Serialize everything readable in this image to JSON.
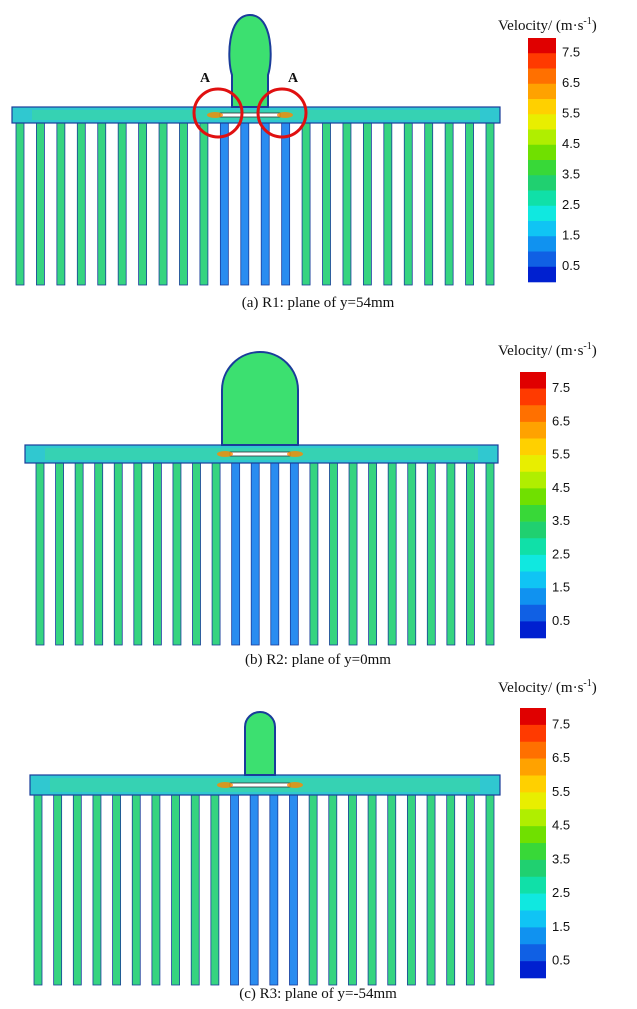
{
  "panels": [
    {
      "legend_title": "Velocity/ (m·s",
      "legend_title_sup": "-1",
      "legend_title_end": ")",
      "legend_ticks": [
        7.5,
        6.5,
        5.5,
        4.5,
        3.5,
        2.5,
        1.5,
        0.5
      ],
      "annotations": [
        "A",
        "A"
      ],
      "caption": "(a) R1: plane of y=54mm"
    },
    {
      "legend_title": "Velocity/ (m·s",
      "legend_title_sup": "-1",
      "legend_title_end": ")",
      "legend_ticks": [
        7.5,
        6.5,
        5.5,
        4.5,
        3.5,
        2.5,
        1.5,
        0.5
      ],
      "caption": "(b) R2: plane of y=0mm"
    },
    {
      "legend_title": "Velocity/ (m·s",
      "legend_title_sup": "-1",
      "legend_title_end": ")",
      "legend_ticks": [
        7.5,
        6.5,
        5.5,
        4.5,
        3.5,
        2.5,
        1.5,
        0.5
      ],
      "caption": "(c) R3: plane of y=-54mm"
    }
  ]
}
